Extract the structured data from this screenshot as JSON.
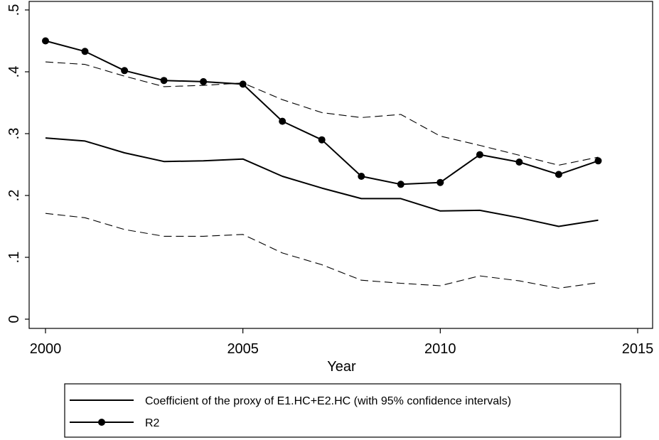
{
  "chart_data": {
    "type": "line",
    "xlabel": "Year",
    "ylabel": "",
    "xlim": [
      2000,
      2015
    ],
    "ylim": [
      0,
      0.5
    ],
    "x_ticks": [
      {
        "value": 2000,
        "label": "2000"
      },
      {
        "value": 2005,
        "label": "2005"
      },
      {
        "value": 2010,
        "label": "2010"
      },
      {
        "value": 2015,
        "label": "2015"
      }
    ],
    "y_ticks": [
      {
        "value": 0,
        "label": "0"
      },
      {
        "value": 0.1,
        "label": ".1"
      },
      {
        "value": 0.2,
        "label": ".2"
      },
      {
        "value": 0.3,
        "label": ".3"
      },
      {
        "value": 0.4,
        "label": ".4"
      },
      {
        "value": 0.5,
        "label": ".5"
      }
    ],
    "grid": false,
    "legend_position": "bottom",
    "x": [
      2000,
      2001,
      2002,
      2003,
      2004,
      2005,
      2006,
      2007,
      2008,
      2009,
      2010,
      2011,
      2012,
      2013,
      2014
    ],
    "series": [
      {
        "id": "coefficient",
        "name": "Coefficient of the proxy of E1.HC+E2.HC (with 95% confidence intervals)",
        "style": "solid",
        "markers": false,
        "values": [
          0.293,
          0.288,
          0.269,
          0.255,
          0.256,
          0.259,
          0.231,
          0.212,
          0.195,
          0.195,
          0.175,
          0.176,
          0.164,
          0.15,
          0.16
        ]
      },
      {
        "id": "ci-upper",
        "style": "dashed",
        "markers": false,
        "values": [
          0.416,
          0.412,
          0.393,
          0.376,
          0.378,
          0.382,
          0.355,
          0.334,
          0.326,
          0.331,
          0.296,
          0.281,
          0.265,
          0.249,
          0.262
        ]
      },
      {
        "id": "ci-lower",
        "style": "dashed",
        "markers": false,
        "values": [
          0.171,
          0.164,
          0.145,
          0.134,
          0.134,
          0.137,
          0.107,
          0.088,
          0.063,
          0.058,
          0.054,
          0.07,
          0.062,
          0.05,
          0.059
        ]
      },
      {
        "id": "r2",
        "name": "R2",
        "style": "solid",
        "markers": true,
        "values": [
          0.45,
          0.433,
          0.402,
          0.386,
          0.384,
          0.38,
          0.32,
          0.29,
          0.231,
          0.218,
          0.221,
          0.266,
          0.254,
          0.234,
          0.256
        ]
      }
    ],
    "colors": {
      "line": "#000000",
      "background": "#ffffff"
    }
  }
}
